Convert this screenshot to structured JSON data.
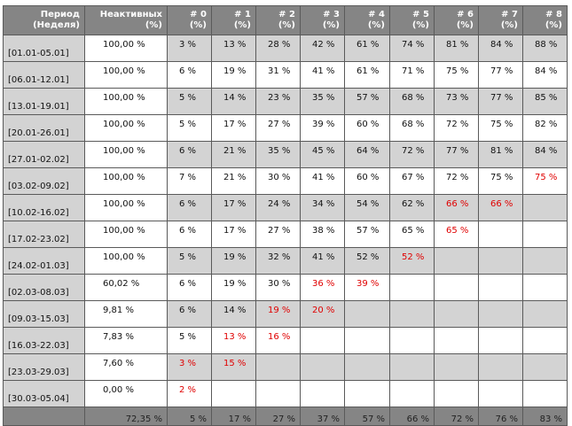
{
  "headers": [
    [
      "Период",
      "(Неделя)"
    ],
    [
      "Неактивных",
      "(%)"
    ],
    [
      "# 0",
      "(%)"
    ],
    [
      "# 1",
      "(%)"
    ],
    [
      "# 2",
      "(%)"
    ],
    [
      "# 3",
      "(%)"
    ],
    [
      "# 4",
      "(%)"
    ],
    [
      "# 5",
      "(%)"
    ],
    [
      "# 6",
      "(%)"
    ],
    [
      "# 7",
      "(%)"
    ],
    [
      "# 8",
      "(%)"
    ]
  ],
  "rows": [
    {
      "period": "[01.01-05.01]",
      "inactive": "100,00 %",
      "cells": [
        "3 %",
        "13 %",
        "28 %",
        "42 %",
        "61 %",
        "74 %",
        "81 %",
        "84 %",
        "88 %"
      ],
      "red_from": -1
    },
    {
      "period": "[06.01-12.01]",
      "inactive": "100,00 %",
      "cells": [
        "6 %",
        "19 %",
        "31 %",
        "41 %",
        "61 %",
        "71 %",
        "75 %",
        "77 %",
        "84 %"
      ],
      "red_from": -1
    },
    {
      "period": "[13.01-19.01]",
      "inactive": "100,00 %",
      "cells": [
        "5 %",
        "14 %",
        "23 %",
        "35 %",
        "57 %",
        "68 %",
        "73 %",
        "77 %",
        "85 %"
      ],
      "red_from": -1
    },
    {
      "period": "[20.01-26.01]",
      "inactive": "100,00 %",
      "cells": [
        "5 %",
        "17 %",
        "27 %",
        "39 %",
        "60 %",
        "68 %",
        "72 %",
        "75 %",
        "82 %"
      ],
      "red_from": -1
    },
    {
      "period": "[27.01-02.02]",
      "inactive": "100,00 %",
      "cells": [
        "6 %",
        "21 %",
        "35 %",
        "45 %",
        "64 %",
        "72 %",
        "77 %",
        "81 %",
        "84 %"
      ],
      "red_from": -1
    },
    {
      "period": "[03.02-09.02]",
      "inactive": "100,00 %",
      "cells": [
        "7 %",
        "21 %",
        "30 %",
        "41 %",
        "60 %",
        "67 %",
        "72 %",
        "75 %",
        "75 %"
      ],
      "red_from": 8
    },
    {
      "period": "[10.02-16.02]",
      "inactive": "100,00 %",
      "cells": [
        "6 %",
        "17 %",
        "24 %",
        "34 %",
        "54 %",
        "62 %",
        "66 %",
        "66 %",
        ""
      ],
      "red_from": 6
    },
    {
      "period": "[17.02-23.02]",
      "inactive": "100,00 %",
      "cells": [
        "6 %",
        "17 %",
        "27 %",
        "38 %",
        "57 %",
        "65 %",
        "65 %",
        "",
        ""
      ],
      "red_from": 6
    },
    {
      "period": "[24.02-01.03]",
      "inactive": "100,00 %",
      "cells": [
        "5 %",
        "19 %",
        "32 %",
        "41 %",
        "52 %",
        "52 %",
        "",
        "",
        ""
      ],
      "red_from": 5
    },
    {
      "period": "[02.03-08.03]",
      "inactive": "60,02 %",
      "cells": [
        "6 %",
        "19 %",
        "30 %",
        "36 %",
        "39 %",
        "",
        "",
        "",
        ""
      ],
      "red_from": 3
    },
    {
      "period": "[09.03-15.03]",
      "inactive": "9,81 %",
      "cells": [
        "6 %",
        "14 %",
        "19 %",
        "20 %",
        "",
        "",
        "",
        "",
        ""
      ],
      "red_from": 2
    },
    {
      "period": "[16.03-22.03]",
      "inactive": "7,83 %",
      "cells": [
        "5 %",
        "13 %",
        "16 %",
        "",
        "",
        "",
        "",
        "",
        ""
      ],
      "red_from": 1
    },
    {
      "period": "[23.03-29.03]",
      "inactive": "7,60 %",
      "cells": [
        "3 %",
        "15 %",
        "",
        "",
        "",
        "",
        "",
        "",
        ""
      ],
      "red_from": 0
    },
    {
      "period": "[30.03-05.04]",
      "inactive": "0,00 %",
      "cells": [
        "2 %",
        "",
        "",
        "",
        "",
        "",
        "",
        "",
        ""
      ],
      "red_from": 0
    }
  ],
  "footer": [
    "",
    "72,35 %",
    "5 %",
    "17 %",
    "27 %",
    "37 %",
    "57 %",
    "66 %",
    "72 %",
    "76 %",
    "83 %"
  ],
  "colors": {
    "header_bg": "#858585",
    "shade_bg": "#d3d3d3",
    "highlight_text": "#e00000"
  }
}
